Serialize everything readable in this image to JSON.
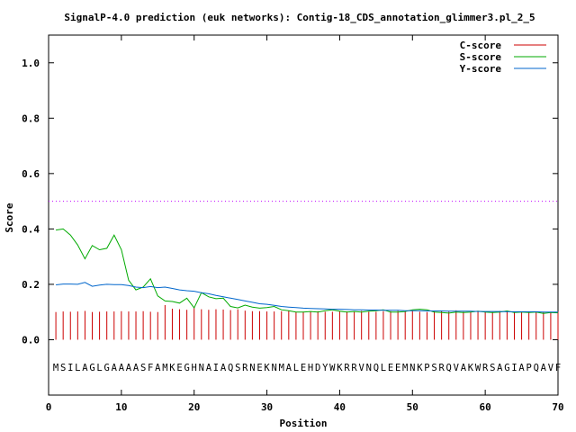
{
  "chart_data": {
    "type": "line",
    "title": "SignalP-4.0 prediction (euk networks): Contig-18_CDS_annotation_glimmer3.pl_2_5",
    "xlabel": "Position",
    "ylabel": "Score",
    "xlim": [
      0,
      70
    ],
    "ylim": [
      -0.2,
      1.1
    ],
    "xticks": [
      0,
      10,
      20,
      30,
      40,
      50,
      60,
      70
    ],
    "yticks": [
      0.0,
      0.2,
      0.4,
      0.6,
      0.8,
      1.0
    ],
    "xtick_labels": [
      "0",
      "10",
      "20",
      "30",
      "40",
      "50",
      "60",
      "70"
    ],
    "ytick_labels": [
      "0.0",
      "0.2",
      "0.4",
      "0.6",
      "0.8",
      "1.0"
    ],
    "threshold": 0.5,
    "threshold_color": "#c000ff",
    "legend_position": "top-right",
    "sequence": "MSILAGLGAAAASFAMKEGHNAIAQSRNEKNMALEHDYWKRRVNQLEEMNKPSRQVAKWRSAGIAPQAVF",
    "series": [
      {
        "name": "C-score",
        "color": "#cc0000",
        "style": "impulses",
        "x": [
          1,
          2,
          3,
          4,
          5,
          6,
          7,
          8,
          9,
          10,
          11,
          12,
          13,
          14,
          15,
          16,
          17,
          18,
          19,
          20,
          21,
          22,
          23,
          24,
          25,
          26,
          27,
          28,
          29,
          30,
          31,
          32,
          33,
          34,
          35,
          36,
          37,
          38,
          39,
          40,
          41,
          42,
          43,
          44,
          45,
          46,
          47,
          48,
          49,
          50,
          51,
          52,
          53,
          54,
          55,
          56,
          57,
          58,
          59,
          60,
          61,
          62,
          63,
          64,
          65,
          66,
          67,
          68,
          69,
          70
        ],
        "values": [
          0.1,
          0.102,
          0.101,
          0.102,
          0.104,
          0.1,
          0.101,
          0.102,
          0.102,
          0.103,
          0.102,
          0.102,
          0.103,
          0.101,
          0.1,
          0.125,
          0.112,
          0.11,
          0.108,
          0.115,
          0.11,
          0.108,
          0.11,
          0.109,
          0.107,
          0.11,
          0.105,
          0.103,
          0.103,
          0.102,
          0.102,
          0.103,
          0.104,
          0.1,
          0.101,
          0.102,
          0.103,
          0.101,
          0.101,
          0.103,
          0.102,
          0.101,
          0.104,
          0.101,
          0.101,
          0.103,
          0.103,
          0.104,
          0.102,
          0.105,
          0.101,
          0.1,
          0.104,
          0.105,
          0.101,
          0.106,
          0.101,
          0.101,
          0.101,
          0.101,
          0.1,
          0.104,
          0.101,
          0.101,
          0.101,
          0.101,
          0.101,
          0.101,
          0.101,
          0.102
        ]
      },
      {
        "name": "S-score",
        "color": "#00aa00",
        "style": "line",
        "x": [
          1,
          2,
          3,
          4,
          5,
          6,
          7,
          8,
          9,
          10,
          11,
          12,
          13,
          14,
          15,
          16,
          17,
          18,
          19,
          20,
          21,
          22,
          23,
          24,
          25,
          26,
          27,
          28,
          29,
          30,
          31,
          32,
          33,
          34,
          35,
          36,
          37,
          38,
          39,
          40,
          41,
          42,
          43,
          44,
          45,
          46,
          47,
          48,
          49,
          50,
          51,
          52,
          53,
          54,
          55,
          56,
          57,
          58,
          59,
          60,
          61,
          62,
          63,
          64,
          65,
          66,
          67,
          68,
          69,
          70
        ],
        "values": [
          0.396,
          0.4,
          0.378,
          0.342,
          0.292,
          0.34,
          0.325,
          0.33,
          0.378,
          0.325,
          0.215,
          0.18,
          0.19,
          0.22,
          0.158,
          0.14,
          0.138,
          0.132,
          0.15,
          0.115,
          0.17,
          0.155,
          0.148,
          0.15,
          0.12,
          0.115,
          0.125,
          0.118,
          0.114,
          0.116,
          0.12,
          0.108,
          0.105,
          0.1,
          0.1,
          0.102,
          0.1,
          0.105,
          0.108,
          0.103,
          0.1,
          0.102,
          0.1,
          0.103,
          0.105,
          0.108,
          0.1,
          0.1,
          0.102,
          0.108,
          0.11,
          0.108,
          0.1,
          0.098,
          0.096,
          0.1,
          0.098,
          0.1,
          0.103,
          0.1,
          0.098,
          0.1,
          0.104,
          0.098,
          0.1,
          0.098,
          0.1,
          0.095,
          0.098,
          0.097
        ]
      },
      {
        "name": "Y-score",
        "color": "#0066cc",
        "style": "line",
        "x": [
          1,
          2,
          3,
          4,
          5,
          6,
          7,
          8,
          9,
          10,
          11,
          12,
          13,
          14,
          15,
          16,
          17,
          18,
          19,
          20,
          21,
          22,
          23,
          24,
          25,
          26,
          27,
          28,
          29,
          30,
          31,
          32,
          33,
          34,
          35,
          36,
          37,
          38,
          39,
          40,
          41,
          42,
          43,
          44,
          45,
          46,
          47,
          48,
          49,
          50,
          51,
          52,
          53,
          54,
          55,
          56,
          57,
          58,
          59,
          60,
          61,
          62,
          63,
          64,
          65,
          66,
          67,
          68,
          69,
          70
        ],
        "values": [
          0.198,
          0.201,
          0.201,
          0.2,
          0.207,
          0.193,
          0.197,
          0.2,
          0.199,
          0.199,
          0.196,
          0.19,
          0.188,
          0.192,
          0.188,
          0.19,
          0.185,
          0.18,
          0.177,
          0.175,
          0.17,
          0.166,
          0.16,
          0.155,
          0.15,
          0.145,
          0.14,
          0.135,
          0.13,
          0.128,
          0.124,
          0.12,
          0.118,
          0.116,
          0.114,
          0.113,
          0.112,
          0.111,
          0.11,
          0.11,
          0.109,
          0.108,
          0.108,
          0.107,
          0.107,
          0.106,
          0.106,
          0.106,
          0.105,
          0.105,
          0.105,
          0.104,
          0.104,
          0.104,
          0.103,
          0.103,
          0.103,
          0.103,
          0.102,
          0.102,
          0.102,
          0.102,
          0.101,
          0.101,
          0.101,
          0.101,
          0.101,
          0.1,
          0.1,
          0.1
        ]
      }
    ]
  }
}
